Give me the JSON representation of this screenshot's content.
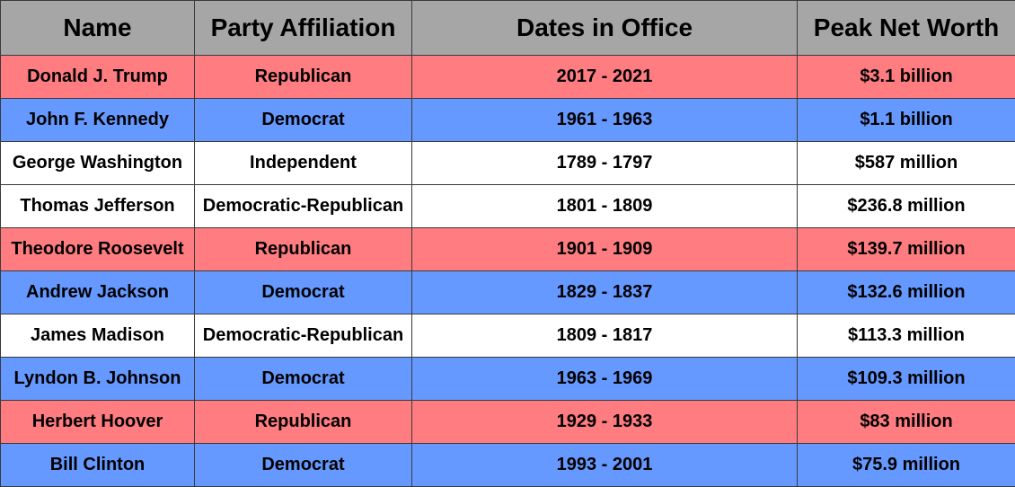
{
  "table": {
    "headers": [
      "Name",
      "Party Affiliation",
      "Dates in Office",
      "Peak Net Worth"
    ],
    "row_colors": {
      "republican": "#ff7c80",
      "democrat": "#6699ff",
      "other": "#ffffff",
      "header": "#a6a6a6"
    },
    "rows": [
      {
        "name": "Donald J. Trump",
        "party": "Republican",
        "dates": "2017 - 2021",
        "worth": "$3.1 billion",
        "color": "republican"
      },
      {
        "name": "John F. Kennedy",
        "party": "Democrat",
        "dates": "1961 - 1963",
        "worth": "$1.1 billion",
        "color": "democrat"
      },
      {
        "name": "George Washington",
        "party": "Independent",
        "dates": "1789 - 1797",
        "worth": "$587 million",
        "color": "other"
      },
      {
        "name": "Thomas Jefferson",
        "party": "Democratic-Republican",
        "dates": "1801 - 1809",
        "worth": "$236.8 million",
        "color": "other"
      },
      {
        "name": "Theodore Roosevelt",
        "party": "Republican",
        "dates": "1901 - 1909",
        "worth": "$139.7 million",
        "color": "republican"
      },
      {
        "name": "Andrew Jackson",
        "party": "Democrat",
        "dates": "1829 - 1837",
        "worth": "$132.6 million",
        "color": "democrat"
      },
      {
        "name": "James Madison",
        "party": "Democratic-Republican",
        "dates": "1809 - 1817",
        "worth": "$113.3 million",
        "color": "other"
      },
      {
        "name": "Lyndon B. Johnson",
        "party": "Democrat",
        "dates": "1963 - 1969",
        "worth": "$109.3 million",
        "color": "democrat"
      },
      {
        "name": "Herbert Hoover",
        "party": "Republican",
        "dates": "1929 - 1933",
        "worth": "$83 million",
        "color": "republican"
      },
      {
        "name": "Bill Clinton",
        "party": "Democrat",
        "dates": "1993 - 2001",
        "worth": "$75.9 million",
        "color": "democrat"
      }
    ]
  }
}
